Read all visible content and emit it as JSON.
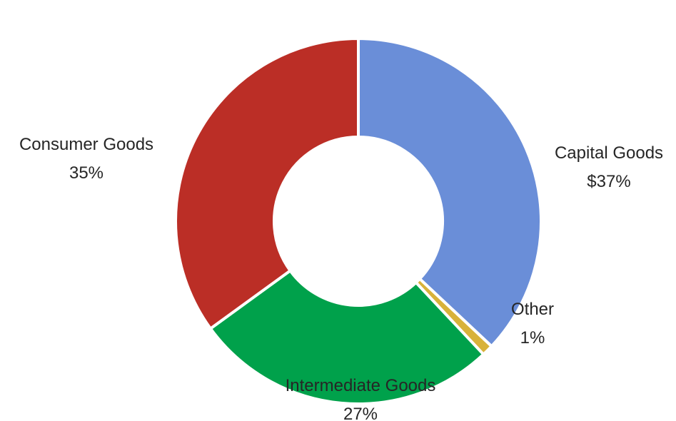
{
  "chart_data": {
    "type": "pie",
    "variant": "donut",
    "title": "",
    "slices": [
      {
        "label": "Capital Goods",
        "value_label": "$37%",
        "value": 37,
        "color": "#6A8ED8"
      },
      {
        "label": "Other",
        "value_label": "1%",
        "value": 1,
        "color": "#D8B23A"
      },
      {
        "label": "Intermediate Goods",
        "value_label": "27%",
        "value": 27,
        "color": "#00A14B"
      },
      {
        "label": "Consumer Goods",
        "value_label": "35%",
        "value": 35,
        "color": "#BB2E26"
      }
    ],
    "legend": "none",
    "data_labels": "outside"
  }
}
